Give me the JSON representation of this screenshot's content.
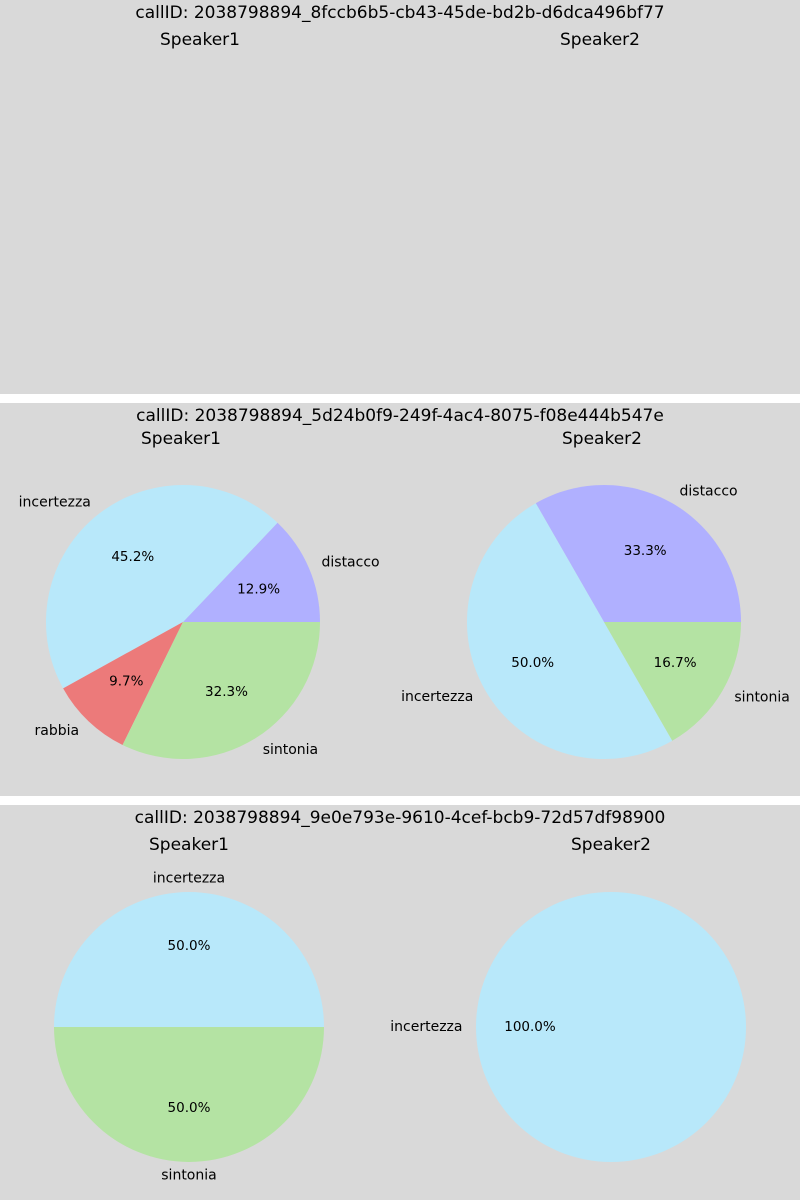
{
  "colors": {
    "distacco": "#b0b0ff",
    "incertezza": "#b8e8fa",
    "rabbia": "#ec7a7a",
    "sintonia": "#b4e3a3"
  },
  "chart_data": [
    {
      "type": "pie",
      "title": "callID: 2038798894_8fccb6b5-cb43-45de-bd2b-d6dca496bf77",
      "subplots": [
        {
          "title": "Speaker1",
          "slices": []
        },
        {
          "title": "Speaker2",
          "slices": []
        }
      ]
    },
    {
      "type": "pie",
      "title": "callID: 2038798894_5d24b0f9-249f-4ac4-8075-f08e444b547e",
      "subplots": [
        {
          "title": "Speaker1",
          "slices": [
            {
              "label": "distacco",
              "value": 12.9,
              "pct_label": "12.9%"
            },
            {
              "label": "incertezza",
              "value": 45.2,
              "pct_label": "45.2%"
            },
            {
              "label": "rabbia",
              "value": 9.7,
              "pct_label": "9.7%"
            },
            {
              "label": "sintonia",
              "value": 32.3,
              "pct_label": "32.3%"
            }
          ]
        },
        {
          "title": "Speaker2",
          "slices": [
            {
              "label": "distacco",
              "value": 33.3,
              "pct_label": "33.3%"
            },
            {
              "label": "incertezza",
              "value": 50.0,
              "pct_label": "50.0%"
            },
            {
              "label": "sintonia",
              "value": 16.7,
              "pct_label": "16.7%"
            }
          ]
        }
      ]
    },
    {
      "type": "pie",
      "title": "callID: 2038798894_9e0e793e-9610-4cef-bcb9-72d57df98900",
      "subplots": [
        {
          "title": "Speaker1",
          "slices": [
            {
              "label": "incertezza",
              "value": 50.0,
              "pct_label": "50.0%"
            },
            {
              "label": "sintonia",
              "value": 50.0,
              "pct_label": "50.0%"
            }
          ]
        },
        {
          "title": "Speaker2",
          "slices": [
            {
              "label": "incertezza",
              "value": 100.0,
              "pct_label": "100.0%"
            }
          ]
        }
      ]
    }
  ]
}
